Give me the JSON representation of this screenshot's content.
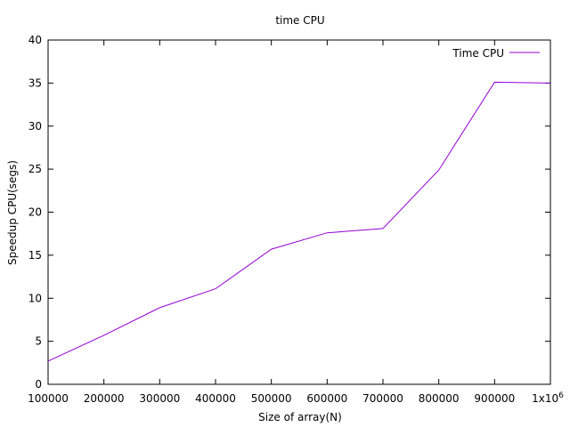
{
  "chart_data": {
    "type": "line",
    "title": "time CPU",
    "xlabel": "Size of array(N)",
    "ylabel": "Speedup CPU(segs)",
    "xlim": [
      100000,
      1000000
    ],
    "ylim": [
      0,
      40
    ],
    "x_ticks": [
      100000,
      200000,
      300000,
      400000,
      500000,
      600000,
      700000,
      800000,
      900000,
      1000000
    ],
    "x_tick_labels": [
      "100000",
      "200000",
      "300000",
      "400000",
      "500000",
      "600000",
      "700000",
      "800000",
      "900000",
      "1x10"
    ],
    "x_last_tick_exponent": "6",
    "y_ticks": [
      0,
      5,
      10,
      15,
      20,
      25,
      30,
      35,
      40
    ],
    "y_tick_labels": [
      "0",
      "5",
      "10",
      "15",
      "20",
      "25",
      "30",
      "35",
      "40"
    ],
    "grid": false,
    "legend_position": "top-right",
    "series": [
      {
        "name": "Time CPU",
        "color": "#9400d3",
        "x": [
          100000,
          200000,
          300000,
          400000,
          500000,
          600000,
          700000,
          800000,
          900000,
          1000000
        ],
        "y": [
          2.7,
          5.7,
          8.9,
          11.1,
          15.7,
          17.6,
          18.1,
          24.9,
          35.1,
          35.0
        ]
      }
    ]
  }
}
